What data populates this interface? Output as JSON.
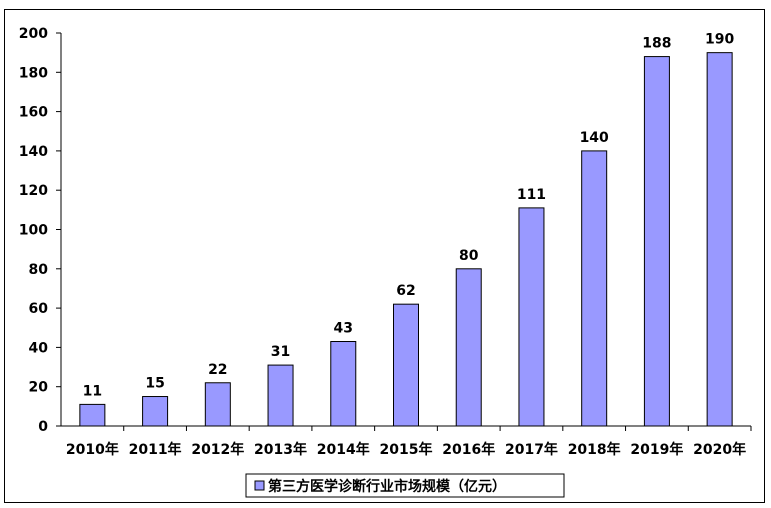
{
  "chart_data": {
    "type": "bar",
    "categories": [
      "2010年",
      "2011年",
      "2012年",
      "2013年",
      "2014年",
      "2015年",
      "2016年",
      "2017年",
      "2018年",
      "2019年",
      "2020年"
    ],
    "series": [
      {
        "name": "第三方医学诊断行业市场规模（亿元）",
        "values": [
          11,
          15,
          22,
          31,
          43,
          62,
          80,
          111,
          140,
          188,
          190
        ]
      }
    ],
    "yticks": [
      0,
      20,
      40,
      60,
      80,
      100,
      120,
      140,
      160,
      180,
      200
    ],
    "ylim": [
      0,
      200
    ],
    "grid": false,
    "legend_position": "bottom",
    "data_labels": true,
    "colors": {
      "bar_fill": "#9999FF",
      "bar_stroke": "#000000"
    }
  }
}
